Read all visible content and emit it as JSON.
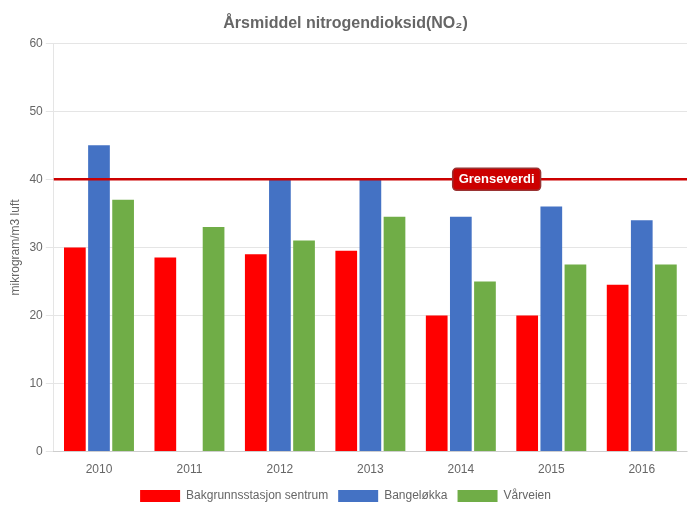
{
  "chart_data": {
    "type": "bar",
    "title": "Årsmiddel nitrogendioksid(NO₂)",
    "y_label": "mikrogram/m3 luft",
    "categories": [
      2010,
      2011,
      2012,
      2013,
      2014,
      2015,
      2016
    ],
    "series": [
      {
        "name": "Bakgrunnsstasjon sentrum",
        "color": "#FF0000",
        "values": [
          30,
          28.5,
          29,
          29.5,
          20,
          20,
          24.5
        ]
      },
      {
        "name": "Bangeløkka",
        "color": "#4472C4",
        "values": [
          45,
          null,
          40,
          40,
          34.5,
          36,
          34
        ]
      },
      {
        "name": "Vårveien",
        "color": "#70AD47",
        "values": [
          37,
          33,
          31,
          34.5,
          25,
          27.5,
          27.5
        ]
      }
    ],
    "annotations": [
      {
        "text": "Grenseverdi",
        "y": 40,
        "color": "#CC0000"
      }
    ],
    "ylim": [
      0,
      60
    ],
    "yticks": [
      0,
      10,
      20,
      30,
      40,
      50,
      60
    ],
    "grid": true,
    "legend": "bottom"
  }
}
